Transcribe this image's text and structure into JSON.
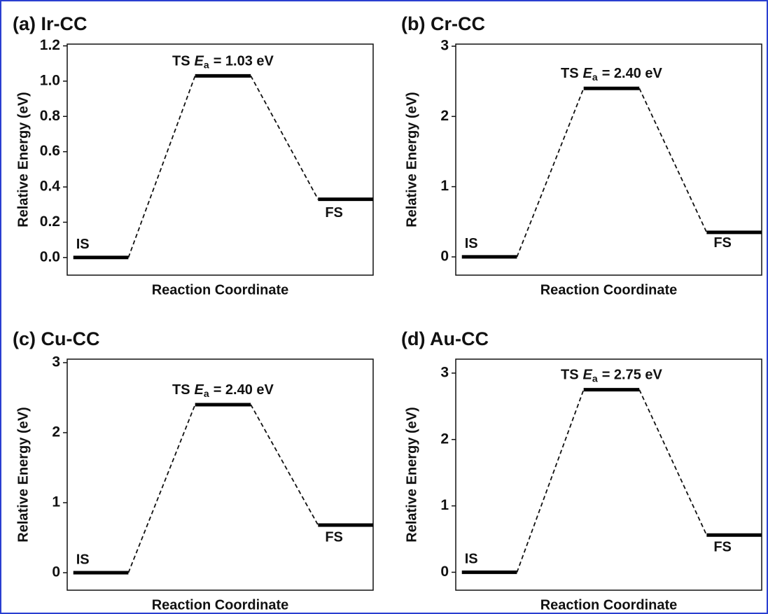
{
  "chart_data": [
    {
      "type": "energy-profile",
      "title": "(a) Ir-CC",
      "y_label": "Relative Energy (eV)",
      "x_label": "Reaction Coordinate",
      "categories": [
        "IS",
        "TS",
        "FS"
      ],
      "values": [
        0,
        1.03,
        0.33
      ],
      "value_labels": [
        null,
        "= 1.03 eV",
        null
      ],
      "label_symbol": "E",
      "label_subscript": "a",
      "color": "#000000",
      "ylim": [
        -0.1,
        1.21
      ],
      "yticks": [
        {
          "value": 0,
          "label": "0.0"
        },
        0.2,
        0.4,
        0.6,
        0.8,
        {
          "value": 1,
          "label": "1.0"
        },
        1.2
      ]
    },
    {
      "type": "energy-profile",
      "title": "(b) Cr-CC",
      "y_label": "Relative Energy (eV)",
      "x_label": "Reaction Coordinate",
      "categories": [
        "IS",
        "TS",
        "FS"
      ],
      "values": [
        0,
        2.4,
        0.35
      ],
      "value_labels": [
        null,
        "= 2.40 eV",
        null
      ],
      "label_symbol": "E",
      "label_subscript": "a",
      "color": "#000000",
      "ylim": [
        -0.26,
        3.03
      ],
      "yticks": [
        0,
        1,
        2,
        3
      ]
    },
    {
      "type": "energy-profile",
      "title": "(c) Cu-CC",
      "y_label": "Relative Energy (eV)",
      "x_label": "Reaction Coordinate",
      "categories": [
        "IS",
        "TS",
        "FS"
      ],
      "values": [
        0,
        2.4,
        0.68
      ],
      "value_labels": [
        null,
        "= 2.40 eV",
        null
      ],
      "label_symbol": "E",
      "label_subscript": "a",
      "color": "#000000",
      "ylim": [
        -0.25,
        3.05
      ],
      "yticks": [
        0,
        1,
        2,
        3
      ]
    },
    {
      "type": "energy-profile",
      "title": "(d) Au-CC",
      "y_label": "Relative Energy (eV)",
      "x_label": "Reaction Coordinate",
      "categories": [
        "IS",
        "TS",
        "FS"
      ],
      "values": [
        0,
        2.75,
        0.56
      ],
      "value_labels": [
        null,
        "= 2.75 eV",
        null
      ],
      "label_symbol": "E",
      "label_subscript": "a",
      "color": "#000000",
      "ylim": [
        -0.27,
        3.21
      ],
      "yticks": [
        0,
        1,
        2,
        3
      ]
    }
  ]
}
